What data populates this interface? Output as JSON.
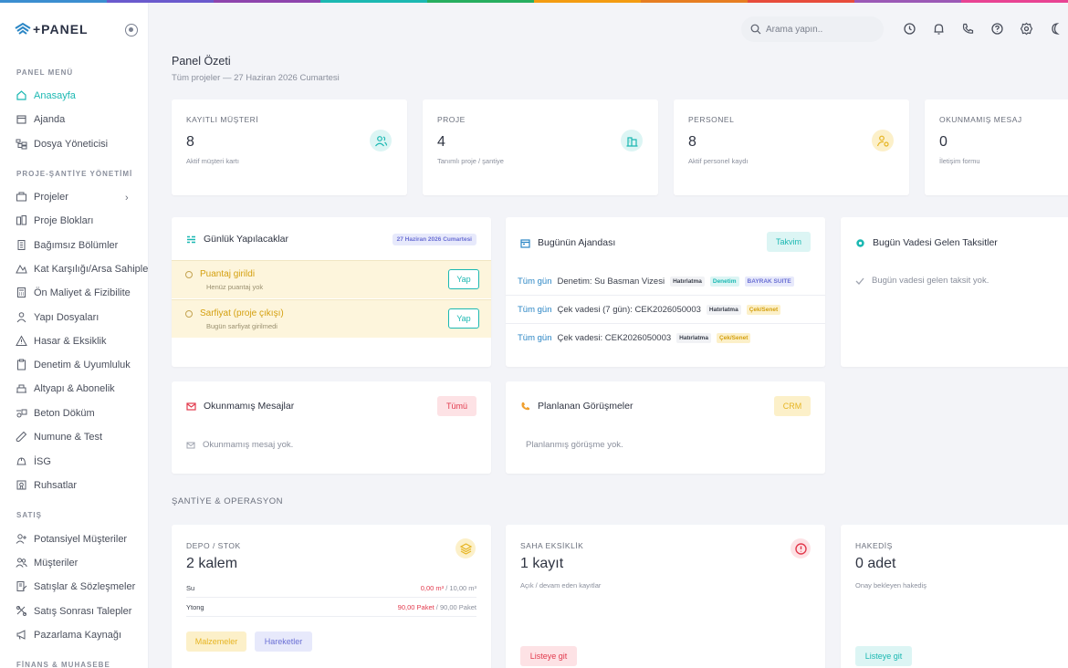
{
  "colors": {
    "accent": "#1bb8b2",
    "stripe": [
      "#3b8ed0",
      "#6a5acd",
      "#8e44ad",
      "#1bb8b2",
      "#27ae60",
      "#f39c12",
      "#e67e22",
      "#e74c3c",
      "#9b59b6",
      "#e84393"
    ]
  },
  "brand": {
    "name": "+PANEL"
  },
  "sidebar": {
    "sections": [
      {
        "title": "PANEL MENÜ"
      },
      {
        "title": "PROJE-ŞANTİYE YÖNETİMİ"
      },
      {
        "title": "SATIŞ"
      },
      {
        "title": "FİNANS & MUHASEBE"
      }
    ],
    "items": [
      {
        "label": "Anasayfa",
        "icon": "home-icon",
        "active": true
      },
      {
        "label": "Ajanda",
        "icon": "calendar-icon"
      },
      {
        "label": "Dosya Yöneticisi",
        "icon": "folder-tree-icon"
      },
      {
        "label": "Projeler",
        "icon": "projects-icon",
        "expandable": true
      },
      {
        "label": "Proje Blokları",
        "icon": "blocks-icon"
      },
      {
        "label": "Bağımsız Bölümler",
        "icon": "building-icon"
      },
      {
        "label": "Kat Karşılığı/Arsa Sahipleri",
        "icon": "land-icon"
      },
      {
        "label": "Ön Maliyet & Fizibilite",
        "icon": "calculator-icon"
      },
      {
        "label": "Yapı Dosyaları",
        "icon": "worker-icon"
      },
      {
        "label": "Hasar & Eksiklik",
        "icon": "warning-icon"
      },
      {
        "label": "Denetim & Uyumluluk",
        "icon": "clipboard-icon"
      },
      {
        "label": "Altyapı & Abonelik",
        "icon": "infrastructure-icon"
      },
      {
        "label": "Beton Döküm",
        "icon": "concrete-icon"
      },
      {
        "label": "Numune & Test",
        "icon": "test-tube-icon"
      },
      {
        "label": "İSG",
        "icon": "helmet-icon"
      },
      {
        "label": "Ruhsatlar",
        "icon": "license-icon"
      },
      {
        "label": "Potansiyel Müşteriler",
        "icon": "user-plus-icon"
      },
      {
        "label": "Müşteriler",
        "icon": "users-icon"
      },
      {
        "label": "Satışlar & Sözleşmeler",
        "icon": "contract-icon"
      },
      {
        "label": "Satış Sonrası Talepler",
        "icon": "support-icon"
      },
      {
        "label": "Pazarlama Kaynağı",
        "icon": "megaphone-icon"
      }
    ]
  },
  "topbar": {
    "search_placeholder": "Arama yapın.."
  },
  "page": {
    "title": "Panel Özeti",
    "subtitle": "Tüm projeler — 27 Haziran 2026 Cumartesi"
  },
  "stats": [
    {
      "label": "KAYITLI MÜŞTERİ",
      "value": "8",
      "desc": "Aktif müşteri kartı",
      "icon": "users-icon",
      "color": "#1bb8b2"
    },
    {
      "label": "PROJE",
      "value": "4",
      "desc": "Tanımlı proje / şantiye",
      "icon": "buildings-icon",
      "color": "#1bb8b2"
    },
    {
      "label": "PERSONEL",
      "value": "8",
      "desc": "Aktif personel kaydı",
      "icon": "user-gear-icon",
      "color": "#e6b422"
    },
    {
      "label": "OKUNMAMIŞ MESAJ",
      "value": "0",
      "desc": "İletişim formu"
    }
  ],
  "todo": {
    "title": "Günlük Yapılacaklar",
    "date_badge": "27 Haziran 2026 Cumartesi",
    "items": [
      {
        "title": "Puantaj girildi",
        "sub": "Henüz puantaj yok",
        "button": "Yap"
      },
      {
        "title": "Sarfiyat (proje çıkışı)",
        "sub": "Bugün sarfiyat girilmedi",
        "button": "Yap"
      }
    ]
  },
  "agenda": {
    "title": "Bugünün Ajandası",
    "button": "Takvim",
    "rows": [
      {
        "time": "Tüm gün",
        "text": "Denetim: Su Basman Vizesi",
        "tags": [
          {
            "label": "Hatırlatma",
            "style": "dark"
          },
          {
            "label": "Denetim",
            "style": "cyan"
          },
          {
            "label": "BAYRAK SUITE",
            "style": "indigo"
          }
        ]
      },
      {
        "time": "Tüm gün",
        "text": "Çek vadesi (7 gün): CEK2026050003",
        "tags": [
          {
            "label": "Hatırlatma",
            "style": "dark"
          },
          {
            "label": "Çek/Senet",
            "style": "yellow"
          }
        ]
      },
      {
        "time": "Tüm gün",
        "text": "Çek vadesi: CEK2026050003",
        "tags": [
          {
            "label": "Hatırlatma",
            "style": "dark"
          },
          {
            "label": "Çek/Senet",
            "style": "yellow"
          }
        ]
      }
    ]
  },
  "installments": {
    "title": "Bugün Vadesi Gelen Taksitler",
    "empty": "Bugün vadesi gelen taksit yok."
  },
  "messages": {
    "title": "Okunmamış Mesajlar",
    "button": "Tümü",
    "empty": "Okunmamış mesaj yok."
  },
  "meetings": {
    "title": "Planlanan Görüşmeler",
    "button": "CRM",
    "empty": "Planlanmış görüşme yok."
  },
  "operations": {
    "section_title": "ŞANTİYE & OPERASYON",
    "stock": {
      "label": "DEPO / STOK",
      "value": "2 kalem",
      "rows": [
        {
          "name": "Su",
          "current": "0,00 m³",
          "total": " / 10,00 m³"
        },
        {
          "name": "Ytong",
          "current": "90,00 Paket",
          "total": " / 90,00 Paket"
        }
      ],
      "btn_materials": "Malzemeler",
      "btn_movements": "Hareketler"
    },
    "defects": {
      "label": "SAHA EKSİKLİK",
      "value": "1 kayıt",
      "desc": "Açık / devam eden kayıtlar",
      "button": "Listeye git"
    },
    "progress": {
      "label": "HAKEDİŞ",
      "value": "0 adet",
      "desc": "Onay bekleyen hakediş",
      "button": "Listeye git"
    }
  }
}
